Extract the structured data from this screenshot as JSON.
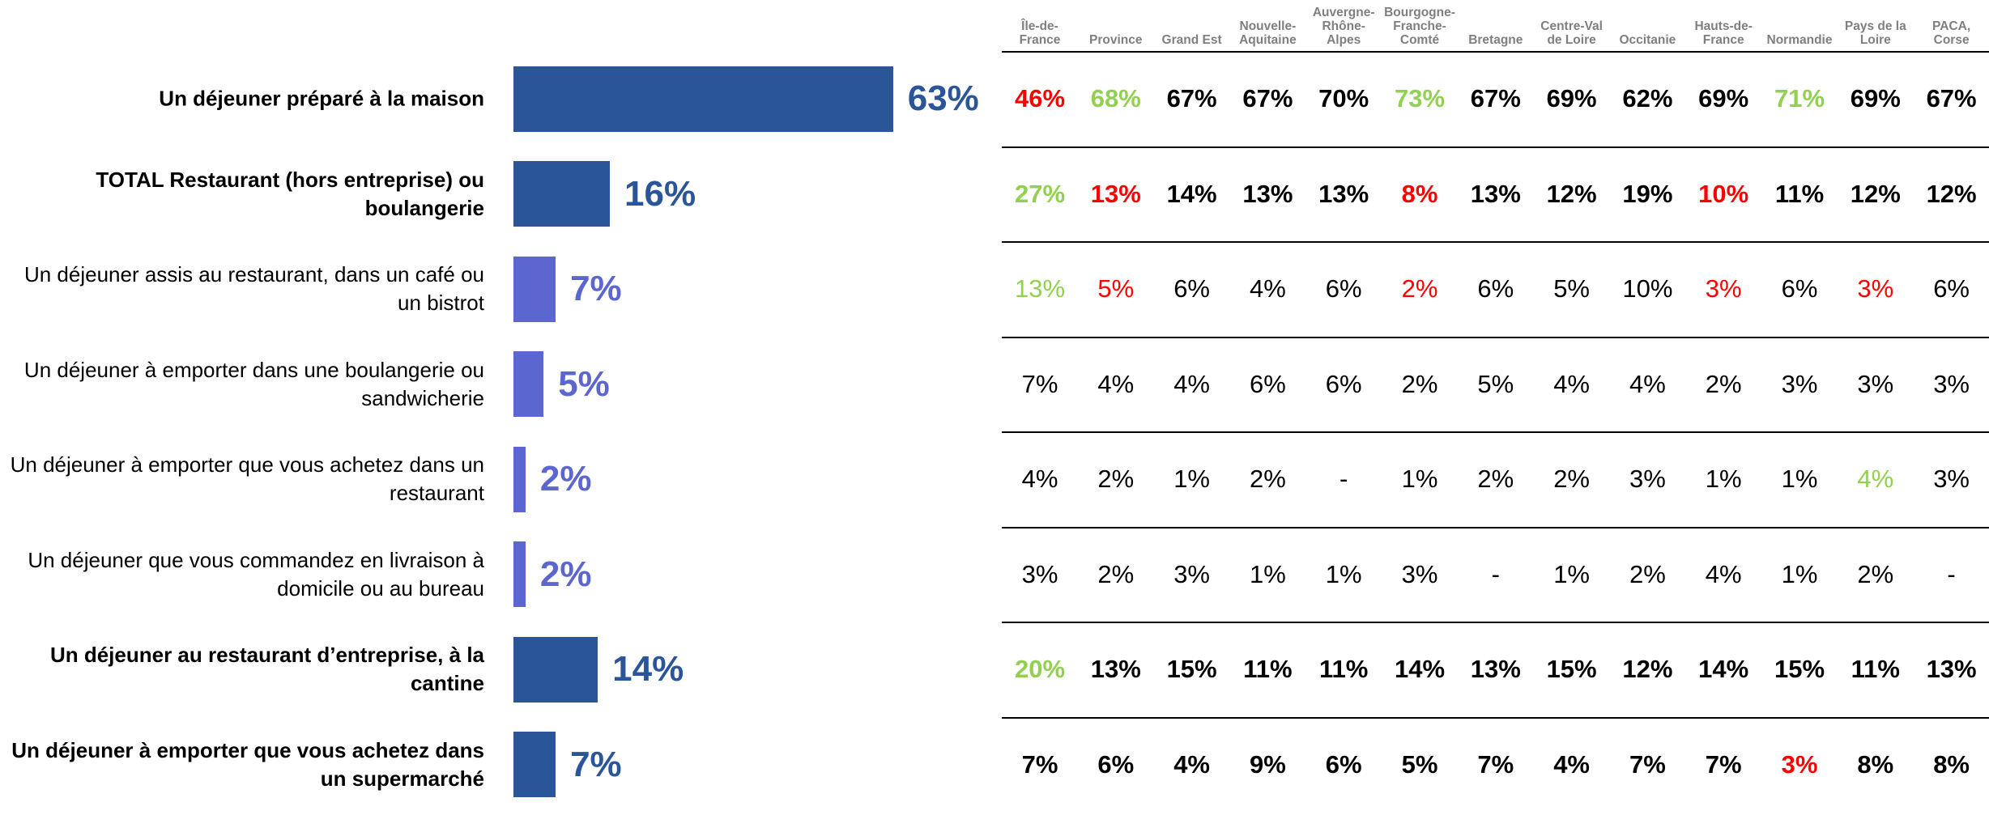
{
  "chart_data": {
    "type": "bar",
    "categories": [
      "Un déjeuner préparé à la maison",
      "TOTAL Restaurant (hors entreprise) ou boulangerie",
      "Un déjeuner assis au restaurant, dans un café ou un bistrot",
      "Un déjeuner à emporter dans une boulangerie ou sandwicherie",
      "Un déjeuner à emporter que vous achetez dans un restaurant",
      "Un déjeuner que vous commandez en livraison à domicile ou au bureau",
      "Un déjeuner au restaurant d’entreprise, à la cantine",
      "Un déjeuner à emporter que vous achetez dans un supermarché"
    ],
    "values": [
      63,
      16,
      7,
      5,
      2,
      2,
      14,
      7
    ],
    "value_labels": [
      "63%",
      "16%",
      "7%",
      "5%",
      "2%",
      "2%",
      "14%",
      "7%"
    ],
    "colors": [
      "#2a5699",
      "#2a5699",
      "#5b66d0",
      "#5b66d0",
      "#5b66d0",
      "#5b66d0",
      "#2a5699",
      "#2a5699"
    ],
    "bold": [
      true,
      true,
      false,
      false,
      false,
      false,
      true,
      true
    ]
  },
  "table": {
    "columns": [
      "Île-de-France",
      "Province",
      "Grand Est",
      "Nouvelle-Aquitaine",
      "Auvergne-Rhône-Alpes",
      "Bourgogne-Franche-Comté",
      "Bretagne",
      "Centre-Val de Loire",
      "Occitanie",
      "Hauts-de-France",
      "Normandie",
      "Pays de la Loire",
      "PACA, Corse"
    ],
    "rows": [
      {
        "bold": true,
        "cells": [
          "46%",
          "68%",
          "67%",
          "67%",
          "70%",
          "73%",
          "67%",
          "69%",
          "62%",
          "69%",
          "71%",
          "69%",
          "67%"
        ],
        "colors": [
          "#ff0000",
          "#92d050",
          "#000000",
          "#000000",
          "#000000",
          "#92d050",
          "#000000",
          "#000000",
          "#000000",
          "#000000",
          "#92d050",
          "#000000",
          "#000000"
        ]
      },
      {
        "bold": true,
        "cells": [
          "27%",
          "13%",
          "14%",
          "13%",
          "13%",
          "8%",
          "13%",
          "12%",
          "19%",
          "10%",
          "11%",
          "12%",
          "12%"
        ],
        "colors": [
          "#92d050",
          "#ff0000",
          "#000000",
          "#000000",
          "#000000",
          "#ff0000",
          "#000000",
          "#000000",
          "#000000",
          "#ff0000",
          "#000000",
          "#000000",
          "#000000"
        ]
      },
      {
        "bold": false,
        "cells": [
          "13%",
          "5%",
          "6%",
          "4%",
          "6%",
          "2%",
          "6%",
          "5%",
          "10%",
          "3%",
          "6%",
          "3%",
          "6%"
        ],
        "colors": [
          "#92d050",
          "#ff0000",
          "#000000",
          "#000000",
          "#000000",
          "#ff0000",
          "#000000",
          "#000000",
          "#000000",
          "#ff0000",
          "#000000",
          "#ff0000",
          "#000000"
        ]
      },
      {
        "bold": false,
        "cells": [
          "7%",
          "4%",
          "4%",
          "6%",
          "6%",
          "2%",
          "5%",
          "4%",
          "4%",
          "2%",
          "3%",
          "3%",
          "3%"
        ],
        "colors": [
          "#000000",
          "#000000",
          "#000000",
          "#000000",
          "#000000",
          "#000000",
          "#000000",
          "#000000",
          "#000000",
          "#000000",
          "#000000",
          "#000000",
          "#000000"
        ]
      },
      {
        "bold": false,
        "cells": [
          "4%",
          "2%",
          "1%",
          "2%",
          "-",
          "1%",
          "2%",
          "2%",
          "3%",
          "1%",
          "1%",
          "4%",
          "3%"
        ],
        "colors": [
          "#000000",
          "#000000",
          "#000000",
          "#000000",
          "#000000",
          "#000000",
          "#000000",
          "#000000",
          "#000000",
          "#000000",
          "#000000",
          "#92d050",
          "#000000"
        ]
      },
      {
        "bold": false,
        "cells": [
          "3%",
          "2%",
          "3%",
          "1%",
          "1%",
          "3%",
          "-",
          "1%",
          "2%",
          "4%",
          "1%",
          "2%",
          "-"
        ],
        "colors": [
          "#000000",
          "#000000",
          "#000000",
          "#000000",
          "#000000",
          "#000000",
          "#000000",
          "#000000",
          "#000000",
          "#000000",
          "#000000",
          "#000000",
          "#000000"
        ]
      },
      {
        "bold": true,
        "cells": [
          "20%",
          "13%",
          "15%",
          "11%",
          "11%",
          "14%",
          "13%",
          "15%",
          "12%",
          "14%",
          "15%",
          "11%",
          "13%"
        ],
        "colors": [
          "#92d050",
          "#000000",
          "#000000",
          "#000000",
          "#000000",
          "#000000",
          "#000000",
          "#000000",
          "#000000",
          "#000000",
          "#000000",
          "#000000",
          "#000000"
        ]
      },
      {
        "bold": true,
        "cells": [
          "7%",
          "6%",
          "4%",
          "9%",
          "6%",
          "5%",
          "7%",
          "4%",
          "7%",
          "7%",
          "3%",
          "8%",
          "8%"
        ],
        "colors": [
          "#000000",
          "#000000",
          "#000000",
          "#000000",
          "#000000",
          "#000000",
          "#000000",
          "#000000",
          "#000000",
          "#000000",
          "#ff0000",
          "#000000",
          "#000000"
        ]
      }
    ]
  }
}
